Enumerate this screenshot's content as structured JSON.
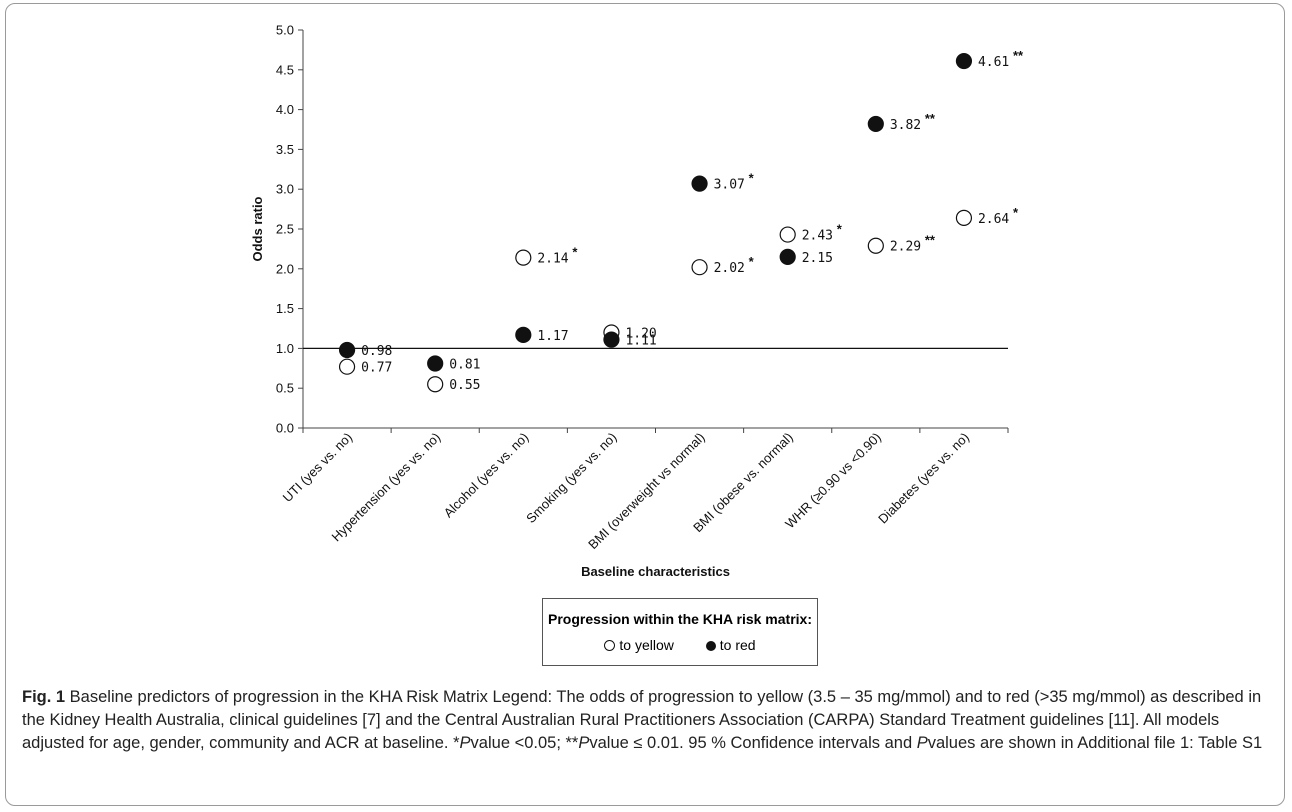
{
  "chart_data": {
    "type": "scatter",
    "categories": [
      "UTI (yes vs. no)",
      "Hypertension (yes vs. no)",
      "Alcohol (yes vs. no)",
      "Smoking (yes vs. no)",
      "BMI (overweight vs normal)",
      "BMI (obese vs. normal)",
      "WHR (≥0.90 vs <0.90)",
      "Diabetes (yes vs. no)"
    ],
    "series": [
      {
        "name": "to yellow",
        "marker": "open-circle",
        "values": [
          0.77,
          0.55,
          2.14,
          1.2,
          2.02,
          2.43,
          2.29,
          2.64
        ],
        "labels": [
          "0.77",
          "0.55",
          "2.14",
          "1.20",
          "2.02",
          "2.43",
          "2.29",
          "2.64"
        ],
        "significance": [
          "",
          "",
          "*",
          "",
          "*",
          "*",
          "**",
          "*"
        ]
      },
      {
        "name": "to red",
        "marker": "filled-circle",
        "values": [
          0.98,
          0.81,
          1.17,
          1.11,
          3.07,
          2.15,
          3.82,
          4.61
        ],
        "labels": [
          "0.98",
          "0.81",
          "1.17",
          "1.11",
          "3.07",
          "2.15",
          "3.82",
          "4.61"
        ],
        "significance": [
          "",
          "",
          "",
          "",
          "*",
          "",
          "**",
          "**"
        ]
      }
    ],
    "xlabel": "Baseline characteristics",
    "ylabel": "Odds ratio",
    "ylim": [
      0.0,
      5.0
    ],
    "yticks": [
      "0.0",
      "0.5",
      "1.0",
      "1.5",
      "2.0",
      "2.5",
      "3.0",
      "3.5",
      "4.0",
      "4.5",
      "5.0"
    ],
    "reference_line": 1.0,
    "grid": false,
    "legend": {
      "title": "Progression within the KHA risk matrix:",
      "position": "bottom-center",
      "items": [
        "to yellow",
        "to red"
      ]
    }
  },
  "caption": {
    "label": "Fig. 1",
    "text_1": " Baseline predictors of progression in the KHA Risk Matrix Legend: The odds of progression to yellow (3.5 – 35 mg/mmol) and to red (>35 mg/mmol) as described in the Kidney Health Australia, clinical guidelines [7] and the Central Australian Rural Practitioners Association (CARPA) Standard Treatment guidelines [11]. All models adjusted for age, gender, community and ACR at baseline. *",
    "p1": "P",
    "text_2": "value <0.05; **",
    "p2": "P",
    "text_3": "value ≤ 0.01. 95 % Confidence intervals and ",
    "p3": "P",
    "text_4": "values are shown in Additional file 1: Table S1"
  }
}
